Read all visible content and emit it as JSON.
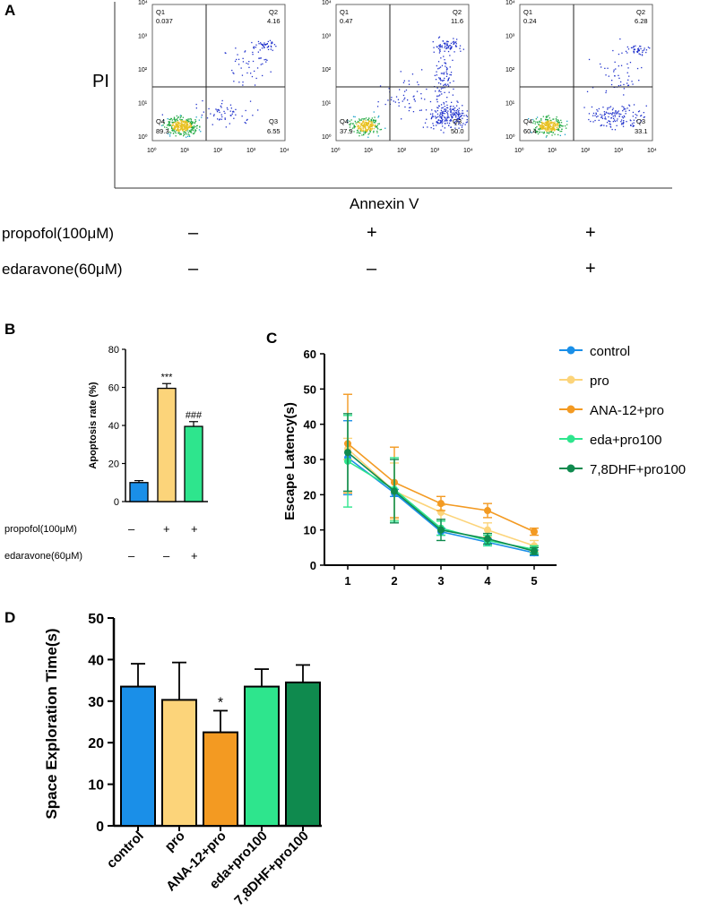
{
  "panelA": {
    "letter": "A",
    "y_axis_label": "PI",
    "x_axis_label": "Annexin V",
    "tick_labels": [
      "10⁰",
      "10¹",
      "10²",
      "10³",
      "10⁴"
    ],
    "plots": [
      {
        "q1_label": "Q1",
        "q1": "0.037",
        "q2_label": "Q2",
        "q2": "4.16",
        "q3_label": "Q3",
        "q3": "6.55",
        "q4_label": "Q4",
        "q4": "89.3"
      },
      {
        "q1_label": "Q1",
        "q1": "0.47",
        "q2_label": "Q2",
        "q2": "11.6",
        "q3_label": "Q3",
        "q3": "50.0",
        "q4_label": "Q4",
        "q4": "37.9"
      },
      {
        "q1_label": "Q1",
        "q1": "0.24",
        "q2_label": "Q2",
        "q2": "6.28",
        "q3_label": "Q3",
        "q3": "33.1",
        "q4_label": "Q4",
        "q4": "60.4"
      }
    ],
    "treatments": [
      {
        "label": "propofol(100μM)",
        "signs": [
          "–",
          "+",
          "+"
        ]
      },
      {
        "label": "edaravone(60μM)",
        "signs": [
          "–",
          "–",
          "+"
        ]
      }
    ]
  },
  "chart_data": [
    {
      "panel": "B",
      "type": "bar",
      "title": "",
      "ylabel": "Apoptosis rate  (%)",
      "ylim": [
        0,
        80
      ],
      "yticks": [
        "0",
        "20",
        "40",
        "60",
        "80"
      ],
      "values": [
        10,
        59.5,
        39.5
      ],
      "errors": [
        1,
        2.5,
        2.5
      ],
      "annotations": [
        "",
        "***",
        "###"
      ],
      "colors": [
        "#1a8fe8",
        "#fcd47a",
        "#2ee58d"
      ],
      "treatments": [
        {
          "label": "propofol(100μM)",
          "signs": [
            "–",
            "+",
            "+"
          ]
        },
        {
          "label": "edaravone(60μM)",
          "signs": [
            "–",
            "–",
            "+"
          ]
        }
      ]
    },
    {
      "panel": "C",
      "type": "line",
      "ylabel": "Escape Latency(s)",
      "x": [
        1,
        2,
        3,
        4,
        5
      ],
      "xticks": [
        "1",
        "2",
        "3",
        "4",
        "5"
      ],
      "ylim": [
        0,
        60
      ],
      "yticks": [
        "0",
        "10",
        "20",
        "30",
        "40",
        "50",
        "60"
      ],
      "legend_position": "right",
      "series": [
        {
          "name": "control",
          "color": "#1a8fe8",
          "values": [
            30.5,
            20.5,
            9.5,
            6.5,
            3.5
          ],
          "errors": [
            10.5,
            1,
            1,
            1,
            0.8
          ]
        },
        {
          "name": "pro",
          "color": "#fcd47a",
          "values": [
            33,
            21,
            15,
            10,
            5.5
          ],
          "errors": [
            3,
            8,
            2,
            2,
            1.5
          ]
        },
        {
          "name": "ANA-12+pro",
          "color": "#f39a22",
          "values": [
            34.5,
            23.5,
            17.5,
            15.5,
            9.5
          ],
          "errors": [
            14,
            10,
            2,
            2,
            1
          ]
        },
        {
          "name": "eda+pro100",
          "color": "#2ee58d",
          "values": [
            29.5,
            21.5,
            10.5,
            7,
            4.5
          ],
          "errors": [
            13,
            9,
            2,
            1.5,
            1
          ]
        },
        {
          "name": "7,8DHF+pro100",
          "color": "#0f8a4e",
          "values": [
            32,
            21,
            10,
            7.5,
            4
          ],
          "errors": [
            11,
            9,
            3,
            1.5,
            1
          ]
        }
      ]
    },
    {
      "panel": "D",
      "type": "bar",
      "ylabel": "Space Exploration Time(s)",
      "ylim": [
        0,
        50
      ],
      "yticks": [
        "0",
        "10",
        "20",
        "30",
        "40",
        "50"
      ],
      "categories": [
        "control",
        "pro",
        "ANA-12+pro",
        "eda+pro100",
        "7,8DHF+pro100"
      ],
      "values": [
        33.5,
        30.3,
        22.5,
        33.5,
        34.5
      ],
      "errors": [
        5.5,
        9,
        5.2,
        4.2,
        4.2
      ],
      "annotations": [
        "",
        "",
        "*",
        "",
        ""
      ],
      "colors": [
        "#1a8fe8",
        "#fcd47a",
        "#f39a22",
        "#2ee58d",
        "#0f8a4e"
      ]
    }
  ]
}
